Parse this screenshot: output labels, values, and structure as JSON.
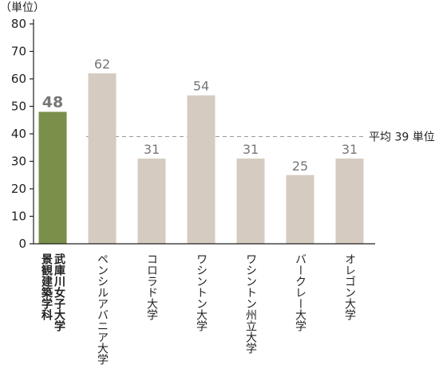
{
  "chart_data": {
    "type": "bar",
    "unit_label": "（単位）",
    "categories": [
      [
        "武庫川女子大学",
        "景観建築学科"
      ],
      [
        "ペンシルアバニア大学"
      ],
      [
        "コロラド大学"
      ],
      [
        "ワシントン大学"
      ],
      [
        "ワシントン州立大学"
      ],
      [
        "バークレー大学"
      ],
      [
        "オレゴン大学"
      ]
    ],
    "values": [
      48,
      62,
      31,
      54,
      31,
      25,
      31
    ],
    "value_labels": [
      "48",
      "62",
      "31",
      "54",
      "31",
      "25",
      "31"
    ],
    "highlight_index": 0,
    "ylim": [
      0,
      80
    ],
    "yticks": [
      0,
      10,
      20,
      30,
      40,
      50,
      60,
      70,
      80
    ],
    "average": {
      "value": 39,
      "label": "平均 39 単位"
    },
    "colors": {
      "highlight_bar": "#7a8f49",
      "bar": "#d6cbc0",
      "highlight_text": "#d9534f",
      "highlight_value": "#6d8a3c",
      "value_text": "#777777",
      "axis": "#222222",
      "average_line": "#999999"
    }
  }
}
